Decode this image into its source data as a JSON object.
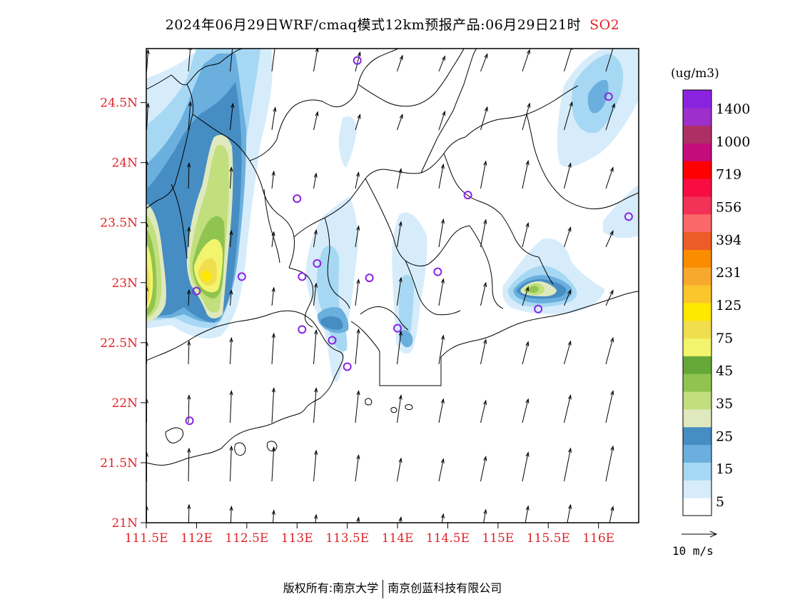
{
  "header": {
    "title": "2024年06月29日WRF/cmaq模式12km预报产品:06月29日21时",
    "species": "SO2"
  },
  "map": {
    "lat_labels": [
      "24.5N",
      "24N",
      "23.5N",
      "23N",
      "22.5N",
      "22N",
      "21.5N",
      "21N"
    ],
    "lat_values": [
      24.5,
      24.0,
      23.5,
      23.0,
      22.5,
      22.0,
      21.5,
      21.0
    ],
    "lon_labels": [
      "111.5E",
      "112E",
      "112.5E",
      "113E",
      "113.5E",
      "114E",
      "114.5E",
      "115E",
      "115.5E",
      "116E"
    ],
    "lon_values": [
      111.5,
      112.0,
      112.5,
      113.0,
      113.5,
      114.0,
      114.5,
      115.0,
      115.5,
      116.0
    ],
    "lon_range": [
      111.5,
      116.4
    ],
    "lat_range": [
      21.0,
      24.95
    ],
    "axis_label_color": "#e0242a",
    "wind_direction": "north (arrows pointing up, slight north-east tilt in the east)",
    "stations": [
      {
        "lon": 113.6,
        "lat": 24.85
      },
      {
        "lon": 116.1,
        "lat": 24.55
      },
      {
        "lon": 114.7,
        "lat": 23.73
      },
      {
        "lon": 113.0,
        "lat": 23.7
      },
      {
        "lon": 116.3,
        "lat": 23.55
      },
      {
        "lon": 113.2,
        "lat": 23.16
      },
      {
        "lon": 114.4,
        "lat": 23.09
      },
      {
        "lon": 112.45,
        "lat": 23.05
      },
      {
        "lon": 113.05,
        "lat": 23.05
      },
      {
        "lon": 113.72,
        "lat": 23.04
      },
      {
        "lon": 112.0,
        "lat": 22.93
      },
      {
        "lon": 115.4,
        "lat": 22.78
      },
      {
        "lon": 113.05,
        "lat": 22.61
      },
      {
        "lon": 114.0,
        "lat": 22.62
      },
      {
        "lon": 113.35,
        "lat": 22.52
      },
      {
        "lon": 113.5,
        "lat": 22.3
      },
      {
        "lon": 111.93,
        "lat": 21.85
      }
    ]
  },
  "legend": {
    "unit": "(ug/m3)",
    "labels": [
      "1400",
      "1000",
      "719",
      "556",
      "394",
      "231",
      "125",
      "75",
      "45",
      "35",
      "25",
      "15",
      "5"
    ],
    "colors": [
      "#ffffff",
      "#d6ecfb",
      "#a7d8f3",
      "#6aafde",
      "#468dc3",
      "#dfe9bd",
      "#c1df7c",
      "#8fc450",
      "#66a838",
      "#f3f46d",
      "#f1de4f",
      "#ffe800",
      "#fbc52c",
      "#f7a92d",
      "#fa8c00",
      "#eb5c26",
      "#fb6868",
      "#f23256",
      "#f70d41",
      "#ff0000",
      "#c50c7d",
      "#ad2f64",
      "#9d2fcd",
      "#8a23e0"
    ],
    "wind_ref": "10 m/s"
  },
  "footer": {
    "copyright": "版权所有:南京大学",
    "company": "南京创蓝科技有限公司"
  }
}
